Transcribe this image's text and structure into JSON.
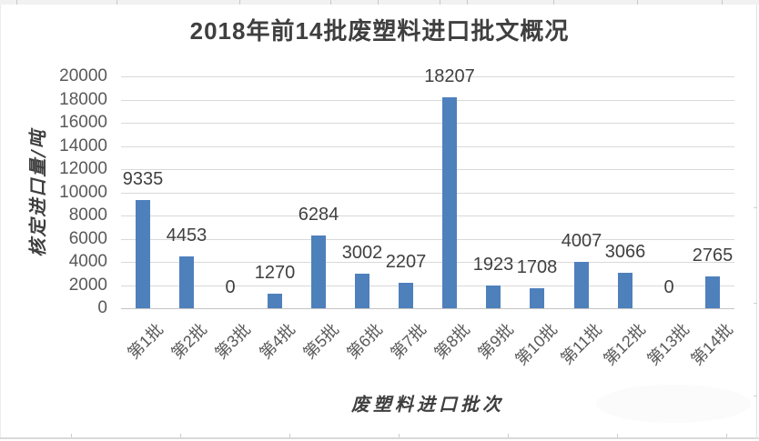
{
  "chart_data": {
    "type": "bar",
    "title": "2018年前14批废塑料进口批文概况",
    "xlabel": "废塑料进口批次",
    "ylabel": "核定进口量/吨",
    "categories": [
      "第1批",
      "第2批",
      "第3批",
      "第4批",
      "第5批",
      "第6批",
      "第7批",
      "第8批",
      "第9批",
      "第10批",
      "第11批",
      "第12批",
      "第13批",
      "第14批"
    ],
    "values": [
      9335,
      4453,
      0,
      1270,
      6284,
      3002,
      2207,
      18207,
      1923,
      1708,
      4007,
      3066,
      0,
      2765
    ],
    "ylim": [
      0,
      20000
    ],
    "ytick_step": 2000,
    "yticks": [
      0,
      2000,
      4000,
      6000,
      8000,
      10000,
      12000,
      14000,
      16000,
      18000,
      20000
    ],
    "grid": true,
    "legend": "none",
    "data_labels": true
  },
  "colors": {
    "bar": "#4E80BC",
    "gridline": "#D9D9D9",
    "baseline": "#C4C4C4",
    "title_text": "#3F3F3F",
    "tick_text": "#595959",
    "data_label_text": "#404040",
    "axis_title_text": "#3F3F3F"
  }
}
